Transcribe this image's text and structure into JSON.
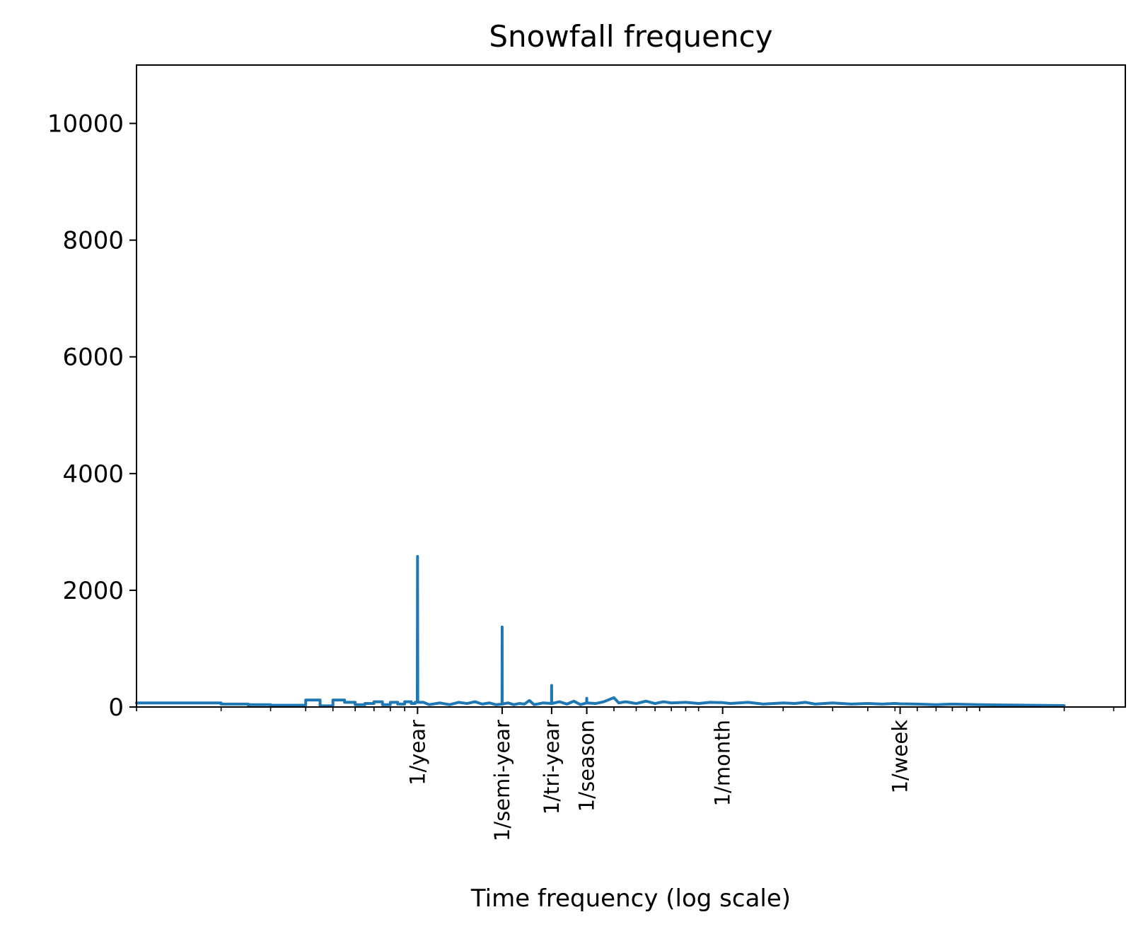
{
  "chart_data": {
    "type": "line",
    "title": "Snowfall frequency",
    "xlabel": "Time frequency (log scale)",
    "ylabel": "",
    "x_scale": "log",
    "xlim": [
      0.1,
      330
    ],
    "ylim": [
      0,
      11000
    ],
    "yticks": [
      0,
      2000,
      4000,
      6000,
      8000,
      10000
    ],
    "xticks": [
      {
        "label": "1/year",
        "value": 1
      },
      {
        "label": "1/semi-year",
        "value": 2
      },
      {
        "label": "1/tri-year",
        "value": 3
      },
      {
        "label": "1/season",
        "value": 4
      },
      {
        "label": "1/month",
        "value": 12.18
      },
      {
        "label": "1/week",
        "value": 52.14
      }
    ],
    "grid": false,
    "series": [
      {
        "color": "#1f77b4",
        "points": [
          [
            0.1,
            70
          ],
          [
            0.2,
            70
          ],
          [
            0.2,
            50
          ],
          [
            0.25,
            50
          ],
          [
            0.25,
            20
          ],
          [
            0.25,
            20
          ],
          [
            0.25,
            40
          ],
          [
            0.3,
            40
          ],
          [
            0.3,
            30
          ],
          [
            0.4,
            30
          ],
          [
            0.4,
            120
          ],
          [
            0.45,
            120
          ],
          [
            0.45,
            20
          ],
          [
            0.5,
            20
          ],
          [
            0.5,
            120
          ],
          [
            0.55,
            120
          ],
          [
            0.55,
            80
          ],
          [
            0.6,
            80
          ],
          [
            0.6,
            40
          ],
          [
            0.65,
            40
          ],
          [
            0.65,
            60
          ],
          [
            0.7,
            60
          ],
          [
            0.7,
            90
          ],
          [
            0.75,
            90
          ],
          [
            0.75,
            40
          ],
          [
            0.8,
            40
          ],
          [
            0.8,
            80
          ],
          [
            0.85,
            80
          ],
          [
            0.85,
            50
          ],
          [
            0.9,
            50
          ],
          [
            0.9,
            90
          ],
          [
            0.95,
            90
          ],
          [
            0.95,
            60
          ],
          [
            0.98,
            60
          ],
          [
            0.98,
            80
          ],
          [
            0.998,
            80
          ],
          [
            1.0,
            2580
          ],
          [
            1.002,
            80
          ],
          [
            1.05,
            80
          ],
          [
            1.1,
            40
          ],
          [
            1.2,
            70
          ],
          [
            1.3,
            40
          ],
          [
            1.4,
            80
          ],
          [
            1.5,
            60
          ],
          [
            1.6,
            90
          ],
          [
            1.7,
            50
          ],
          [
            1.8,
            70
          ],
          [
            1.9,
            40
          ],
          [
            1.998,
            50
          ],
          [
            2.0,
            1370
          ],
          [
            2.002,
            50
          ],
          [
            2.1,
            70
          ],
          [
            2.2,
            40
          ],
          [
            2.3,
            60
          ],
          [
            2.4,
            50
          ],
          [
            2.5,
            110
          ],
          [
            2.6,
            40
          ],
          [
            2.8,
            70
          ],
          [
            2.998,
            60
          ],
          [
            3.0,
            370
          ],
          [
            3.002,
            60
          ],
          [
            3.2,
            90
          ],
          [
            3.4,
            50
          ],
          [
            3.6,
            100
          ],
          [
            3.8,
            40
          ],
          [
            3.998,
            70
          ],
          [
            4.0,
            150
          ],
          [
            4.002,
            70
          ],
          [
            4.3,
            60
          ],
          [
            4.6,
            90
          ],
          [
            5.0,
            160
          ],
          [
            5.2,
            70
          ],
          [
            5.5,
            90
          ],
          [
            6.0,
            60
          ],
          [
            6.5,
            100
          ],
          [
            7.0,
            60
          ],
          [
            7.5,
            90
          ],
          [
            8.0,
            70
          ],
          [
            9.0,
            80
          ],
          [
            10.0,
            60
          ],
          [
            11.0,
            80
          ],
          [
            12.18,
            75
          ],
          [
            13.0,
            60
          ],
          [
            15.0,
            80
          ],
          [
            17.0,
            50
          ],
          [
            20.0,
            70
          ],
          [
            22.0,
            60
          ],
          [
            24.0,
            80
          ],
          [
            26.0,
            50
          ],
          [
            30.0,
            70
          ],
          [
            35.0,
            50
          ],
          [
            40.0,
            60
          ],
          [
            45.0,
            50
          ],
          [
            50.0,
            60
          ],
          [
            52.14,
            55
          ],
          [
            60.0,
            50
          ],
          [
            70.0,
            40
          ],
          [
            80.0,
            50
          ],
          [
            100.0,
            40
          ],
          [
            120.0,
            35
          ],
          [
            150.0,
            30
          ],
          [
            200.0,
            25
          ]
        ]
      }
    ]
  }
}
